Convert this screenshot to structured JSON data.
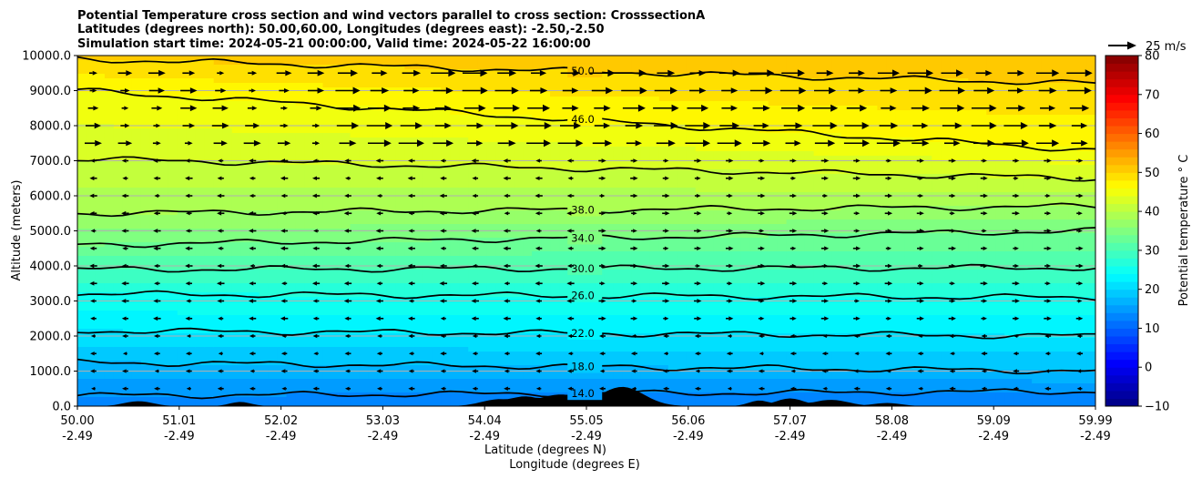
{
  "chart_data": {
    "type": "heatmap",
    "title_lines": [
      "Potential Temperature cross section and wind vectors parallel to cross section: CrosssectionA",
      "Latitudes (degrees north): 50.00,60.00, Longitudes (degrees east): -2.50,-2.50",
      "Simulation start time: 2024-05-21 00:00:00, Valid time: 2024-05-22 16:00:00"
    ],
    "xlabel_lines": [
      "Latitude (degrees N)",
      "Longitude (degrees E)"
    ],
    "ylabel": "Altitude (meters)",
    "x_ticks": [
      {
        "lat": "50.00",
        "lon": "-2.49"
      },
      {
        "lat": "51.01",
        "lon": "-2.49"
      },
      {
        "lat": "52.02",
        "lon": "-2.49"
      },
      {
        "lat": "53.03",
        "lon": "-2.49"
      },
      {
        "lat": "54.04",
        "lon": "-2.49"
      },
      {
        "lat": "55.05",
        "lon": "-2.49"
      },
      {
        "lat": "56.06",
        "lon": "-2.49"
      },
      {
        "lat": "57.07",
        "lon": "-2.49"
      },
      {
        "lat": "58.08",
        "lon": "-2.49"
      },
      {
        "lat": "59.09",
        "lon": "-2.49"
      },
      {
        "lat": "59.99",
        "lon": "-2.49"
      }
    ],
    "y_ticks": [
      "0.0",
      "1000.0",
      "2000.0",
      "3000.0",
      "4000.0",
      "5000.0",
      "6000.0",
      "7000.0",
      "8000.0",
      "9000.0",
      "10000.0"
    ],
    "xlim": [
      50.0,
      59.99
    ],
    "ylim": [
      0,
      10000
    ],
    "grid": "horizontal",
    "colorbar": {
      "label": "Potential temperature $^\\circ$C",
      "label_display": "Potential temperature ° C",
      "min": -10,
      "max": 80,
      "ticks": [
        "−10",
        "0",
        "10",
        "20",
        "30",
        "40",
        "50",
        "60",
        "70",
        "80"
      ],
      "colormap": "jet"
    },
    "quiver_key": {
      "label": "25 m/s",
      "speed": 25
    },
    "contours": [
      {
        "level": 14,
        "label": "14.0",
        "y_left": 300,
        "y_right": 420
      },
      {
        "level": 18,
        "label": "18.0",
        "y_left": 1250,
        "y_right": 1000
      },
      {
        "level": 22,
        "label": "22.0",
        "y_left": 2150,
        "y_right": 2000
      },
      {
        "level": 26,
        "label": "26.0",
        "y_left": 3200,
        "y_right": 3100
      },
      {
        "level": 30,
        "label": "30.0",
        "y_left": 3900,
        "y_right": 3950
      },
      {
        "level": 34,
        "label": "34.0",
        "y_left": 4600,
        "y_right": 5000
      },
      {
        "level": 38,
        "label": "38.0",
        "y_left": 5500,
        "y_right": 5700
      },
      {
        "level": 42,
        "label": "",
        "y_left": 7050,
        "y_right": 6500
      },
      {
        "level": 46,
        "label": "46.0",
        "y_left": 9000,
        "y_right": 7300
      },
      {
        "level": 50,
        "label": "50.0",
        "y_left": 9900,
        "y_right": 9200
      }
    ],
    "wind_regimes": [
      {
        "layer": "upper (above ~7000 m)",
        "direction": "right",
        "speed_ms": 12
      },
      {
        "layer": "middle (2000–7000 m)",
        "direction": "left (south half), right (north half)",
        "speed_ms": 4
      },
      {
        "layer": "lower (below 2000 m)",
        "direction": "left",
        "speed_ms": 3
      }
    ]
  }
}
